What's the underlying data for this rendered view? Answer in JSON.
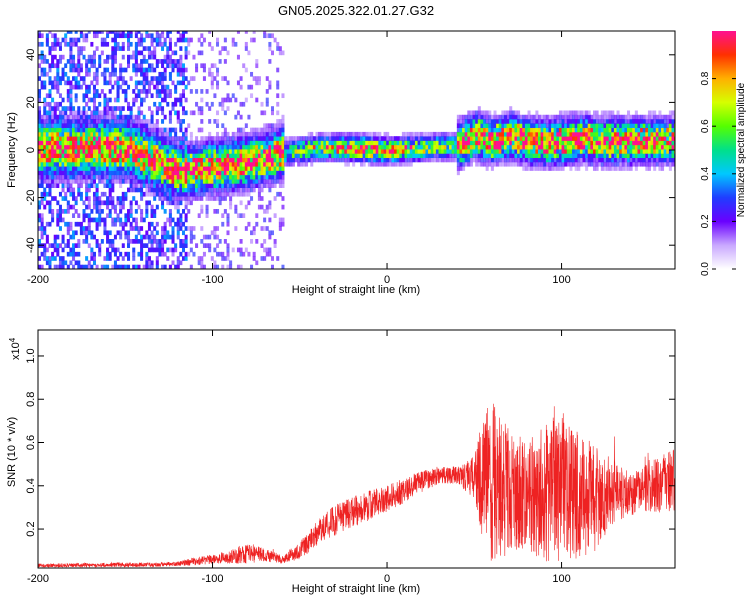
{
  "figure_title": "GN05.2025.322.01.27.G32",
  "chart_data": [
    {
      "type": "heatmap",
      "title": "GN05.2025.322.01.27.G32",
      "xlabel": "Height of straight line (km)",
      "ylabel": "Frequency (Hz)",
      "xlim": [
        -200,
        165
      ],
      "ylim": [
        -50,
        50
      ],
      "xticks": [
        -200,
        -100,
        0,
        100
      ],
      "xtick_labels": [
        "-200",
        "-100",
        "0",
        "100"
      ],
      "yticks": [
        -40,
        -20,
        0,
        20,
        40
      ],
      "ytick_labels": [
        "-40",
        "-20",
        "0",
        "20",
        "40"
      ],
      "colorbar": {
        "label": "Normalized spectral amplitude",
        "range": [
          0,
          1
        ],
        "ticks": [
          0.0,
          0.2,
          0.4,
          0.6,
          0.8
        ],
        "tick_labels": [
          "0.0",
          "0.2",
          "0.4",
          "0.6",
          "0.8"
        ],
        "colormap": [
          "#ffffff",
          "#c9a8ff",
          "#6a00ff",
          "#1f3dff",
          "#00c8ff",
          "#00e08a",
          "#55ff00",
          "#d6ff00",
          "#ffb000",
          "#ff3000",
          "#ff1090"
        ]
      },
      "ridge_frequency": {
        "height_km": [
          -200,
          -150,
          -120,
          -100,
          -80,
          -60,
          -40,
          -20,
          0,
          20,
          40,
          50,
          60,
          70,
          80,
          90,
          100,
          110,
          120,
          130,
          140,
          150,
          165
        ],
        "frequency_hz": [
          0,
          0,
          -10,
          -8,
          -6,
          -2,
          0,
          0,
          -1,
          0,
          1,
          5,
          3,
          5,
          3,
          2,
          3,
          4,
          3,
          3,
          3,
          3,
          3
        ]
      },
      "noise_floor_region_km": [
        -200,
        -115
      ],
      "secondary_noise_region_km": [
        -115,
        -60
      ]
    },
    {
      "type": "line",
      "xlabel": "Height of straight line (km)",
      "ylabel": "SNR (10 * v/v)",
      "y_multiplier": "(x10^4)",
      "y_multiplier_base": "x10",
      "y_multiplier_exp": "4",
      "xlim": [
        -200,
        165
      ],
      "ylim": [
        0.02,
        1.12
      ],
      "xticks": [
        -200,
        -100,
        0,
        100
      ],
      "xtick_labels": [
        "-200",
        "-100",
        "0",
        "100"
      ],
      "yticks": [
        0.2,
        0.4,
        0.6,
        0.8,
        1.0
      ],
      "ytick_labels": [
        "0.2",
        "0.4",
        "0.6",
        "0.8",
        "1.0"
      ],
      "color": "#ee2222",
      "series": [
        {
          "name": "SNR",
          "envelope_x": [
            -200,
            -160,
            -130,
            -120,
            -110,
            -100,
            -90,
            -80,
            -70,
            -60,
            -50,
            -40,
            -30,
            -20,
            -10,
            0,
            10,
            20,
            30,
            40,
            50,
            55,
            60,
            70,
            80,
            90,
            100,
            110,
            120,
            125,
            130,
            140,
            150,
            165
          ],
          "envelope_mean": [
            0.03,
            0.035,
            0.035,
            0.04,
            0.05,
            0.06,
            0.07,
            0.09,
            0.08,
            0.06,
            0.1,
            0.18,
            0.24,
            0.28,
            0.31,
            0.34,
            0.38,
            0.42,
            0.45,
            0.45,
            0.44,
            0.44,
            0.42,
            0.38,
            0.35,
            0.36,
            0.4,
            0.36,
            0.33,
            0.34,
            0.38,
            0.36,
            0.4,
            0.42
          ],
          "envelope_spread": [
            0.01,
            0.01,
            0.01,
            0.01,
            0.02,
            0.02,
            0.03,
            0.05,
            0.03,
            0.02,
            0.04,
            0.06,
            0.07,
            0.07,
            0.07,
            0.06,
            0.06,
            0.05,
            0.04,
            0.04,
            0.1,
            0.3,
            0.38,
            0.3,
            0.25,
            0.32,
            0.35,
            0.3,
            0.25,
            0.2,
            0.15,
            0.1,
            0.12,
            0.15
          ]
        }
      ]
    }
  ]
}
